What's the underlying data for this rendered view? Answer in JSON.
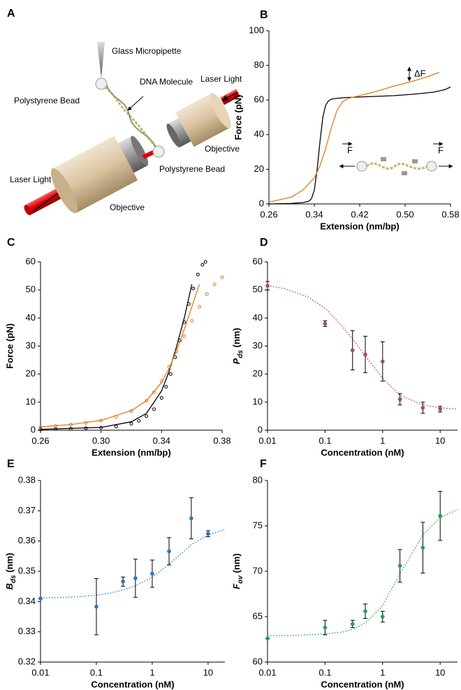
{
  "illustration": {
    "panel_label": "A",
    "labels": [
      "Glass Micropipette",
      "DNA Molecule",
      "Polystyrene Bead",
      "Laser Light",
      "Objective",
      "Polystyrene Bead",
      "Laser Light",
      "Objective"
    ]
  },
  "chart_data": [
    {
      "type": "line",
      "panel_label": "B",
      "x_label": "Extension (nm/bp)",
      "y_label": "Force (pN)",
      "xlim": [
        0.26,
        0.58
      ],
      "xticks": [
        0.26,
        0.34,
        0.42,
        {
          "value": 0.5,
          "label": "0.50"
        },
        0.58
      ],
      "ylim": [
        0,
        100
      ],
      "yticks": [
        0,
        20,
        40,
        60,
        80,
        100
      ],
      "annotations": [
        "ΔF",
        "F",
        "F"
      ],
      "series": [
        {
          "color": "#000000",
          "style": "line",
          "x": [
            0.26,
            0.3,
            0.32,
            0.33,
            0.335,
            0.34,
            0.345,
            0.35,
            0.355,
            0.36,
            0.365,
            0.37,
            0.38,
            0.4,
            0.44,
            0.48,
            0.52,
            0.55,
            0.57,
            0.58
          ],
          "values": [
            0,
            0.3,
            0.8,
            1.5,
            3,
            8,
            20,
            36,
            50,
            57,
            59.5,
            60.5,
            61,
            61.5,
            62,
            62.5,
            63.5,
            64.5,
            66,
            67.5
          ]
        },
        {
          "color": "#e07b1c",
          "style": "line",
          "x": [
            0.26,
            0.3,
            0.32,
            0.34,
            0.35,
            0.36,
            0.37,
            0.38,
            0.39,
            0.4,
            0.42,
            0.45,
            0.48,
            0.51,
            0.54,
            0.56
          ],
          "values": [
            1,
            4,
            8,
            15,
            22,
            32,
            44,
            54,
            59,
            61,
            62.5,
            65,
            68,
            70.5,
            73.5,
            76
          ]
        }
      ]
    },
    {
      "type": "line",
      "panel_label": "C",
      "x_label": "Extension (nm/bp)",
      "y_label": "Force (pN)",
      "xlim": [
        0.26,
        0.38
      ],
      "xticks": [
        0.26,
        {
          "value": 0.3,
          "label": "0.30"
        },
        0.34,
        0.38
      ],
      "ylim": [
        0,
        60
      ],
      "yticks": [
        0,
        10,
        20,
        30,
        40,
        50,
        60
      ],
      "series": [
        {
          "color": "#000000",
          "style": "open-circles",
          "x": [
            0.26,
            0.27,
            0.28,
            0.29,
            0.3,
            0.31,
            0.32,
            0.325,
            0.33,
            0.335,
            0.34,
            0.343,
            0.346,
            0.349,
            0.352,
            0.355,
            0.358,
            0.361,
            0.364,
            0.367,
            0.369
          ],
          "values": [
            0.3,
            0.4,
            0.5,
            0.7,
            0.9,
            1.3,
            2.3,
            3.3,
            5,
            7.5,
            11.5,
            15.5,
            20,
            26,
            32,
            38.5,
            45,
            50.5,
            55.5,
            59,
            60
          ]
        },
        {
          "color": "#000000",
          "style": "line",
          "x": [
            0.26,
            0.3,
            0.32,
            0.33,
            0.34,
            0.345,
            0.35,
            0.355,
            0.36
          ],
          "values": [
            0.3,
            1,
            3,
            6,
            14,
            21,
            30,
            40,
            52
          ]
        },
        {
          "color": "#e07b1c",
          "style": "open-circles",
          "x": [
            0.26,
            0.27,
            0.28,
            0.29,
            0.3,
            0.31,
            0.32,
            0.33,
            0.335,
            0.34,
            0.345,
            0.35,
            0.355,
            0.36,
            0.365,
            0.37,
            0.375,
            0.38
          ],
          "values": [
            1,
            1.5,
            2,
            2.6,
            3.4,
            4.7,
            6.8,
            10.5,
            13.5,
            17.5,
            22.5,
            28,
            33.5,
            39,
            44,
            48.5,
            52,
            54.5
          ]
        },
        {
          "color": "#e07b1c",
          "style": "line",
          "x": [
            0.26,
            0.28,
            0.3,
            0.32,
            0.33,
            0.34,
            0.345,
            0.35,
            0.355,
            0.36,
            0.365
          ],
          "values": [
            1.2,
            2,
            3.5,
            7,
            10.5,
            17,
            22,
            28.5,
            36,
            44,
            52
          ]
        }
      ]
    },
    {
      "type": "scatter",
      "panel_label": "D",
      "x_label": "Concentration (nM)",
      "y_label": [
        "P",
        "ds",
        " (nm)"
      ],
      "xscale": "log",
      "xlim": [
        0.01,
        20
      ],
      "xticks": [
        0.01,
        0.1,
        1,
        10
      ],
      "ylim": [
        0,
        60
      ],
      "yticks": [
        0,
        10,
        20,
        30,
        40,
        50,
        60
      ],
      "series": [
        {
          "color": "#c0504d",
          "style": "dotted",
          "x": [
            0.01,
            0.02,
            0.05,
            0.1,
            0.2,
            0.3,
            0.5,
            1,
            2,
            5,
            10,
            20
          ],
          "values": [
            51.5,
            50.5,
            47.5,
            43.5,
            37,
            32.5,
            26.5,
            18.5,
            12.5,
            9,
            8,
            7.5
          ]
        },
        {
          "color": "#a05050",
          "style": "points",
          "x": [
            0.01,
            0.1,
            0.3,
            0.5,
            1,
            2,
            5,
            10
          ],
          "values": [
            51.5,
            38,
            28.5,
            27,
            24.5,
            11,
            8,
            7.5
          ],
          "errors": [
            1.5,
            1,
            7,
            6.5,
            7,
            2,
            2,
            1
          ]
        }
      ]
    },
    {
      "type": "scatter",
      "panel_label": "E",
      "x_label": "Concentration (nM)",
      "y_label": [
        "B",
        "ds",
        " (nm)"
      ],
      "xscale": "log",
      "xlim": [
        0.01,
        20
      ],
      "xticks": [
        0.01,
        0.1,
        1,
        10
      ],
      "ylim": [
        0.32,
        0.38
      ],
      "yticks": [
        0.32,
        0.33,
        0.34,
        0.35,
        0.36,
        0.37,
        0.38
      ],
      "series": [
        {
          "color": "#2e8bc0",
          "style": "dotted",
          "x": [
            0.01,
            0.02,
            0.05,
            0.1,
            0.2,
            0.3,
            0.5,
            1,
            2,
            5,
            10,
            20
          ],
          "values": [
            0.3412,
            0.3413,
            0.3416,
            0.3421,
            0.343,
            0.3438,
            0.3452,
            0.348,
            0.3523,
            0.3588,
            0.362,
            0.3638
          ]
        },
        {
          "color": "#2e75b6",
          "style": "points",
          "x": [
            0.01,
            0.1,
            0.3,
            0.5,
            1,
            2,
            5,
            10
          ],
          "values": [
            0.341,
            0.3383,
            0.3466,
            0.3477,
            0.3492,
            0.3566,
            0.3675,
            0.3624
          ],
          "errors": [
            0,
            0.0093,
            0.0015,
            0.0063,
            0.0045,
            0.0045,
            0.0068,
            0.001
          ]
        }
      ]
    },
    {
      "type": "scatter",
      "panel_label": "F",
      "x_label": "Concentration (nM)",
      "y_label": [
        "F",
        "ov",
        " (nm)"
      ],
      "xscale": "log",
      "xlim": [
        0.01,
        20
      ],
      "xticks": [
        0.01,
        0.1,
        1,
        10
      ],
      "ylim": [
        60,
        80
      ],
      "yticks": [
        60,
        65,
        70,
        75,
        80
      ],
      "series": [
        {
          "color": "#2db34a",
          "style": "dotted",
          "x": [
            0.01,
            0.02,
            0.05,
            0.1,
            0.2,
            0.3,
            0.5,
            1,
            2,
            5,
            10,
            20
          ],
          "values": [
            62.9,
            62.9,
            63,
            63.1,
            63.3,
            63.6,
            64.3,
            66.2,
            69.7,
            74,
            75.9,
            76.8
          ]
        },
        {
          "color": "#22a050",
          "style": "points",
          "x": [
            0.01,
            0.1,
            0.3,
            0.5,
            1,
            2,
            5,
            10
          ],
          "values": [
            62.6,
            63.8,
            64.2,
            65.6,
            65,
            70.6,
            72.6,
            76.1
          ],
          "errors": [
            0,
            0.8,
            0.4,
            0.8,
            0.6,
            1.8,
            2.8,
            2.7
          ]
        }
      ]
    }
  ]
}
